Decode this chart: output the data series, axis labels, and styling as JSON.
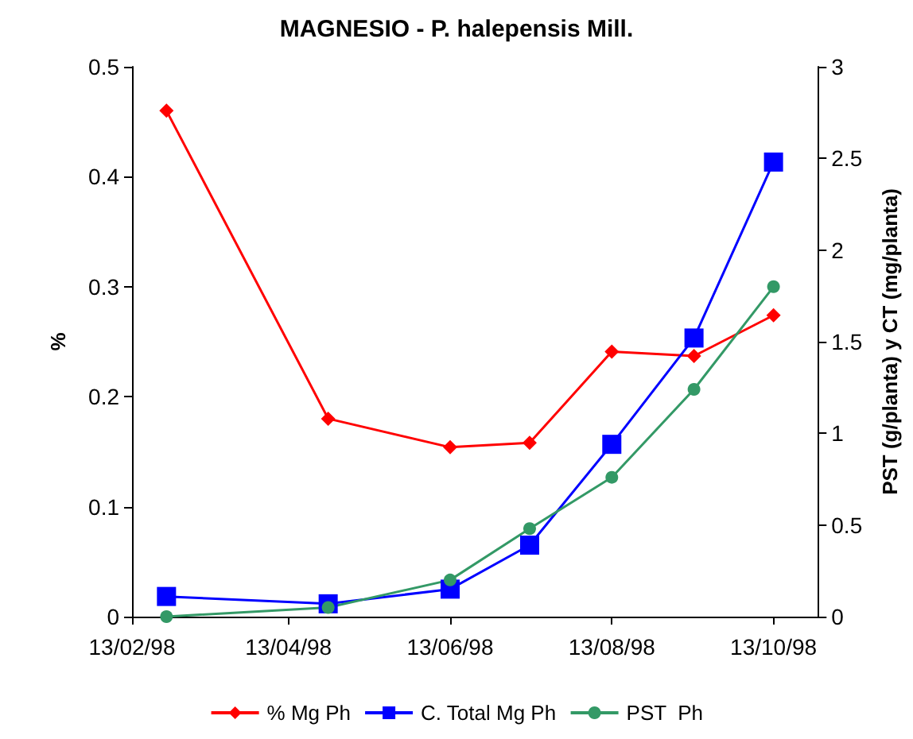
{
  "chart_data": {
    "type": "line",
    "title": "MAGNESIO - P. halepensis Mill.",
    "ylabel": "%",
    "y2label": "PST (g/planta) y CT (mg/planta)",
    "x": [
      "1998-02-26",
      "1998-04-28",
      "1998-06-13",
      "1998-07-13",
      "1998-08-13",
      "1998-09-13",
      "1998-10-13"
    ],
    "xlim": [
      "1998-02-13",
      "1998-10-30"
    ],
    "xticks": [
      {
        "value": "1998-02-13",
        "label": "13/02/98"
      },
      {
        "value": "1998-04-13",
        "label": "13/04/98"
      },
      {
        "value": "1998-06-13",
        "label": "13/06/98"
      },
      {
        "value": "1998-08-13",
        "label": "13/08/98"
      },
      {
        "value": "1998-10-13",
        "label": "13/10/98"
      }
    ],
    "ylim": [
      0,
      0.5
    ],
    "yticks": [
      0,
      0.1,
      0.2,
      0.3,
      0.4,
      0.5
    ],
    "y2lim": [
      0,
      3
    ],
    "y2ticks": [
      0,
      0.5,
      1,
      1.5,
      2,
      2.5,
      3
    ],
    "grid": false,
    "legend": "bottom",
    "series": [
      {
        "name": "% Mg Ph",
        "color": "#ff0000",
        "marker": "diamond",
        "values": [
          0.46,
          0.18,
          0.154,
          0.158,
          0.241,
          0.237,
          0.274
        ]
      },
      {
        "name": "C. Total Mg Ph",
        "color": "#0000ff",
        "marker": "square",
        "axis": "y2",
        "values": [
          0.11,
          0.07,
          0.15,
          0.39,
          0.94,
          1.52,
          2.48
        ]
      },
      {
        "name": "PST  Ph",
        "color": "#339966",
        "marker": "circle",
        "axis": "y2",
        "values": [
          0,
          0.05,
          0.2,
          0.48,
          0.76,
          1.24,
          1.8
        ]
      }
    ]
  }
}
